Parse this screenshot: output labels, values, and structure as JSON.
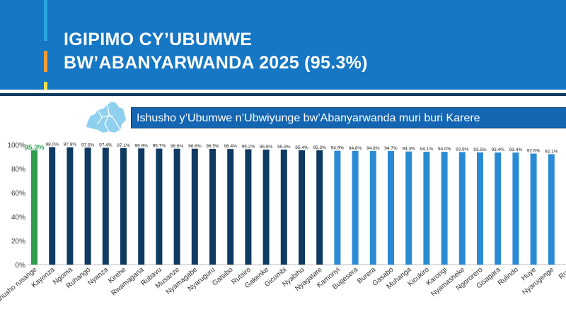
{
  "header": {
    "title_line1": "IGIPIMO CY’UBUMWE",
    "title_line2": "BW’ABANYARWANDA 2025 (95.3%)",
    "accent_colors": [
      "#29a8e0",
      "#f39c34",
      "#f4e04d"
    ]
  },
  "banner": {
    "text": "Ishusho y’Ubumwe n’Ubwiyunge bw’Abanyarwanda muri buri Karere",
    "icon": "rwanda-map-icon"
  },
  "colors": {
    "header_bg": "#1677c4",
    "national": "#2e9e4e",
    "above_average": "#0f3b63",
    "below_average": "#2a8bd4"
  },
  "chart_data": {
    "type": "bar",
    "categories": [
      "Ishusho rusange",
      "Kayonza",
      "Ngoma",
      "Ruhango",
      "Nyanza",
      "Kirehe",
      "Rwamagana",
      "Rubavu",
      "Musanze",
      "Nyamagabe",
      "Nyaruguru",
      "Gatsibo",
      "Rutsiro",
      "Gakenke",
      "Gicumbi",
      "Nyabihu",
      "Nyagatare",
      "Kamonyi",
      "Bugesera",
      "Burera",
      "Gasabo",
      "Muhanga",
      "Kicukiro",
      "Karongi",
      "Nyamasheke",
      "Ngororero",
      "Gisagara",
      "Rulindo",
      "Huye",
      "Nyarugenge",
      "Rusi"
    ],
    "values": [
      95.3,
      98.0,
      97.8,
      97.5,
      97.4,
      97.1,
      96.9,
      96.7,
      96.6,
      96.6,
      96.5,
      96.4,
      96.2,
      95.9,
      95.9,
      95.4,
      95.3,
      94.9,
      94.8,
      94.8,
      94.7,
      94.3,
      94.1,
      94.0,
      93.8,
      93.5,
      93.4,
      93.4,
      92.6,
      92.1,
      92.0
    ],
    "value_labels": [
      "95.3%",
      "98.0%",
      "97.8%",
      "97.5%",
      "97.4%",
      "97.1%",
      "96.9%",
      "96.7%",
      "96.6%",
      "96.6%",
      "96.5%",
      "96.4%",
      "96.2%",
      "95.9%",
      "95.9%",
      "95.4%",
      "95.3%",
      "94.9%",
      "94.8%",
      "94.8%",
      "94.7%",
      "94.3%",
      "94.1%",
      "94.0%",
      "93.8%",
      "93.5%",
      "93.4%",
      "93.4%",
      "92.6%",
      "92.1%",
      ""
    ],
    "bar_groups": [
      "national",
      "above",
      "above",
      "above",
      "above",
      "above",
      "above",
      "above",
      "above",
      "above",
      "above",
      "above",
      "above",
      "above",
      "above",
      "above",
      "above",
      "below",
      "below",
      "below",
      "below",
      "below",
      "below",
      "below",
      "below",
      "below",
      "below",
      "below",
      "below",
      "below",
      "below"
    ],
    "y_ticks": [
      "0%",
      "20%",
      "40%",
      "60%",
      "80%",
      "100%"
    ],
    "ylim": [
      0,
      100
    ],
    "grid": false,
    "legend": "none"
  }
}
